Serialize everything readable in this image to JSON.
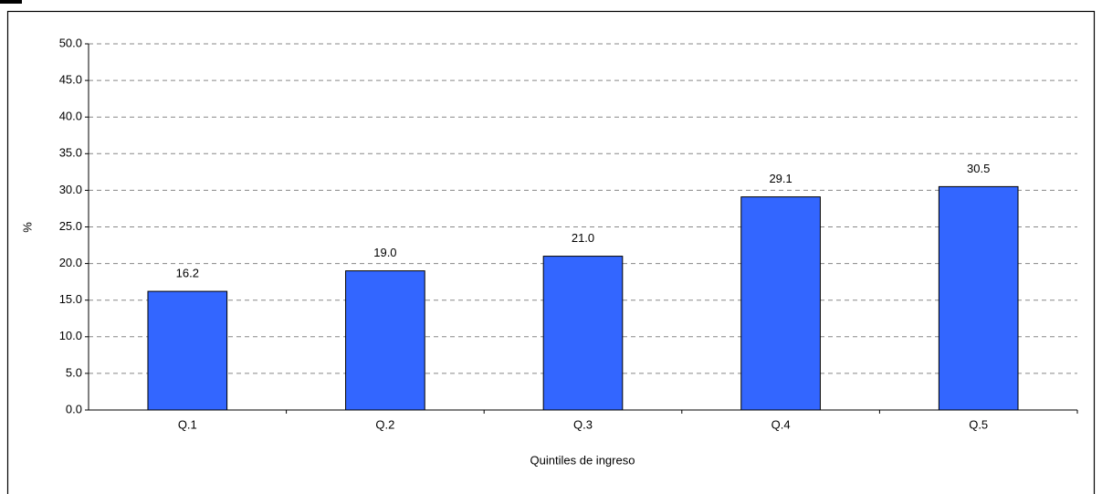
{
  "chart_data": {
    "type": "bar",
    "x_label": "Quintiles de ingreso",
    "y_label": "%",
    "categories": [
      "Q.1",
      "Q.2",
      "Q.3",
      "Q.4",
      "Q.5"
    ],
    "values": [
      16.2,
      19.0,
      21.0,
      29.1,
      30.5
    ],
    "value_labels": [
      "16.2",
      "19.0",
      "21.0",
      "29.1",
      "30.5"
    ],
    "color": "#3366ff",
    "ylim": [
      0,
      50
    ],
    "yticks": [
      {
        "value": 0,
        "label": "0.0"
      },
      {
        "value": 5,
        "label": "5.0"
      },
      {
        "value": 10,
        "label": "10.0"
      },
      {
        "value": 15,
        "label": "15.0"
      },
      {
        "value": 20,
        "label": "20.0"
      },
      {
        "value": 25,
        "label": "25.0"
      },
      {
        "value": 30,
        "label": "30.0"
      },
      {
        "value": 35,
        "label": "35.0"
      },
      {
        "value": 40,
        "label": "40.0"
      },
      {
        "value": 45,
        "label": "45.0"
      },
      {
        "value": 50,
        "label": "50.0"
      }
    ],
    "grid": true
  }
}
